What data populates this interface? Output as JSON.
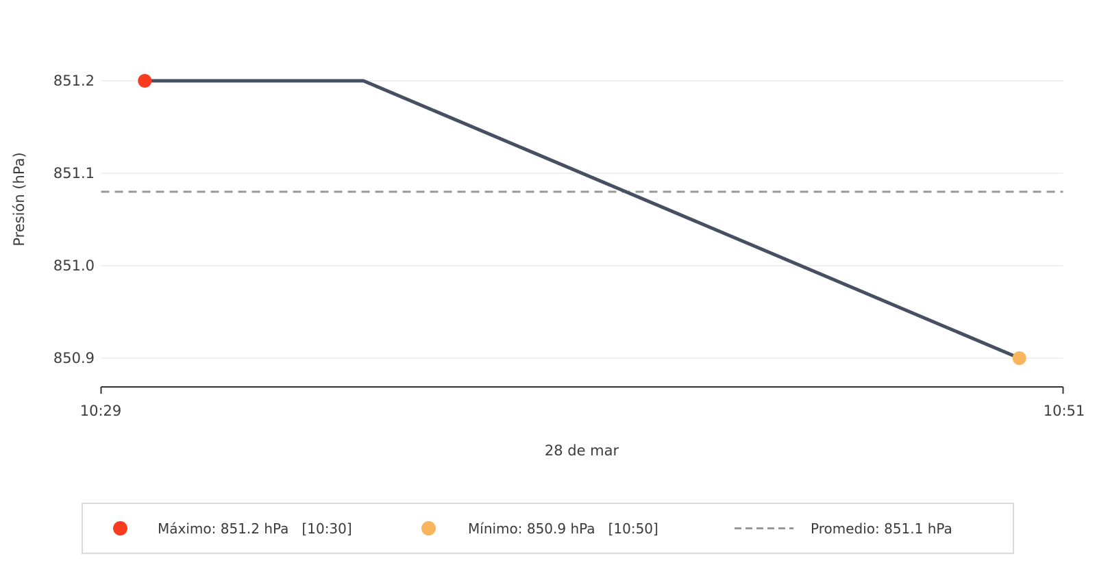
{
  "chart_data": {
    "type": "line",
    "title": "",
    "xlabel": "28 de mar",
    "ylabel": "Presión (hPa)",
    "x_range": [
      "10:29",
      "10:51"
    ],
    "ylim": [
      850.9,
      851.2
    ],
    "ytick_values": [
      851.2,
      851.1,
      851.0,
      850.9
    ],
    "ytick_labels": [
      "851.2",
      "851.1",
      "851.0",
      "850.9"
    ],
    "xtick_labels": [
      "10:29",
      "10:51"
    ],
    "grid": true,
    "series": [
      {
        "name": "Presión",
        "color": "#474f63",
        "points": [
          {
            "time": "10:30",
            "value": 851.2
          },
          {
            "time": "10:35",
            "value": 851.2
          },
          {
            "time": "10:50",
            "value": 850.9
          }
        ]
      }
    ],
    "markers": [
      {
        "kind": "max",
        "time": "10:30",
        "value": 851.2,
        "color": "#f93b1f"
      },
      {
        "kind": "min",
        "time": "10:50",
        "value": 850.9,
        "color": "#f9b55e"
      }
    ],
    "average": {
      "value": 851.08,
      "label": "851.1",
      "color": "#999999"
    },
    "colors": {
      "grid": "#f0f0f2",
      "axis": "#333333",
      "text": "#3d3d3d"
    }
  },
  "legend": {
    "position": "bottom",
    "items": [
      {
        "marker": "dot",
        "color": "#f93b1f",
        "label": "Máximo: 851.2 hPa",
        "time": "[10:30]"
      },
      {
        "marker": "dot",
        "color": "#f9b55e",
        "label": "Mínimo: 850.9 hPa",
        "time": "[10:50]"
      },
      {
        "marker": "dash",
        "color": "#999999",
        "label": "Promedio: 851.1 hPa",
        "time": ""
      }
    ]
  }
}
